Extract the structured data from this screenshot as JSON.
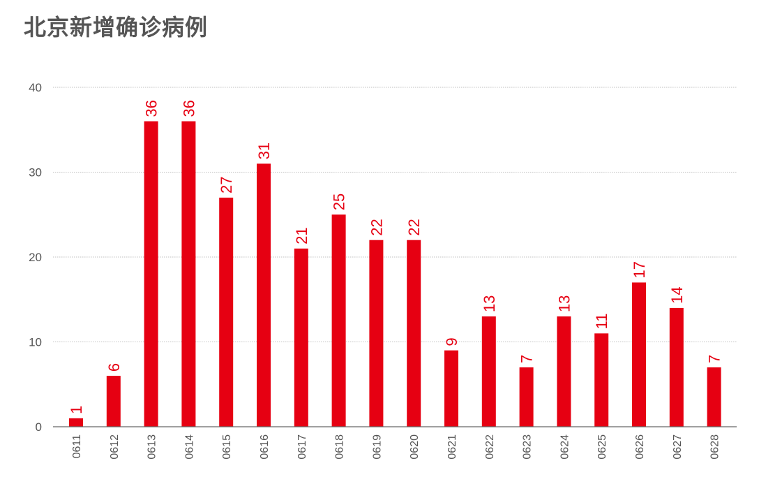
{
  "title": "北京新增确诊病例",
  "chart_data": {
    "type": "bar",
    "title": "北京新增确诊病例",
    "xlabel": "",
    "ylabel": "",
    "ylim": [
      0,
      40
    ],
    "yticks": [
      0,
      10,
      20,
      30,
      40
    ],
    "grid": true,
    "bar_color": "#e60012",
    "categories": [
      "0611",
      "0612",
      "0613",
      "0614",
      "0615",
      "0616",
      "0617",
      "0618",
      "0619",
      "0620",
      "0621",
      "0622",
      "0623",
      "0624",
      "0625",
      "0626",
      "0627",
      "0628"
    ],
    "values": [
      1,
      6,
      36,
      36,
      27,
      31,
      21,
      25,
      22,
      22,
      9,
      13,
      7,
      13,
      11,
      17,
      14,
      7
    ]
  }
}
